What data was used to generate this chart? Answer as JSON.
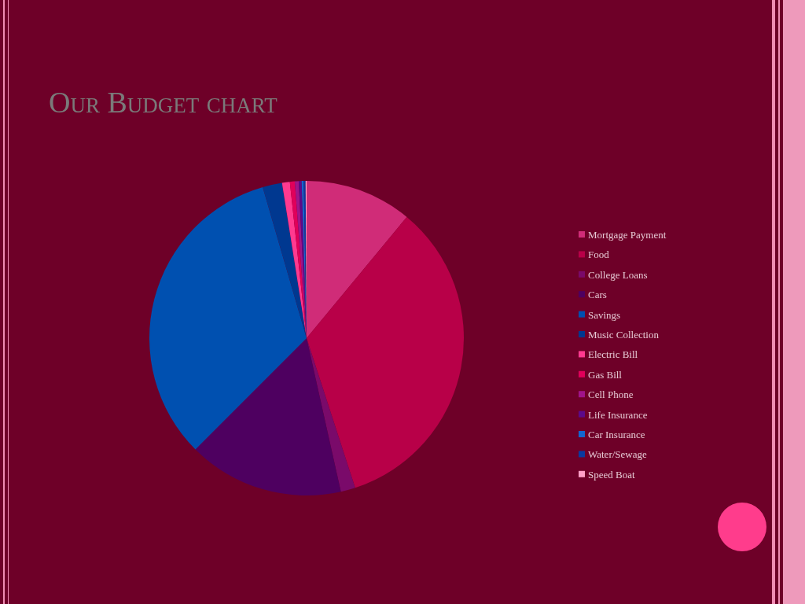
{
  "chart_data": {
    "type": "pie",
    "title": "Our Budget chart",
    "legend": "right",
    "categories": [
      "Mortgage Payment",
      "Food",
      "College Loans",
      "Cars",
      "Savings",
      "Music Collection",
      "Electric Bill",
      "Gas Bill",
      "Cell Phone",
      "Life Insurance",
      "Car Insurance",
      "Water/Sewage",
      "Speed Boat"
    ],
    "values": [
      11,
      34,
      1.5,
      16,
      33,
      2,
      0.8,
      0.5,
      0.4,
      0.3,
      0.2,
      0.2,
      0.1
    ],
    "colors": [
      "#d02c78",
      "#b80048",
      "#7a0a6a",
      "#4e0060",
      "#0050b0",
      "#003890",
      "#ff3a90",
      "#e0005a",
      "#a0148a",
      "#5c0a8a",
      "#1466d0",
      "#0a3aa0",
      "#ffa0c8"
    ]
  }
}
